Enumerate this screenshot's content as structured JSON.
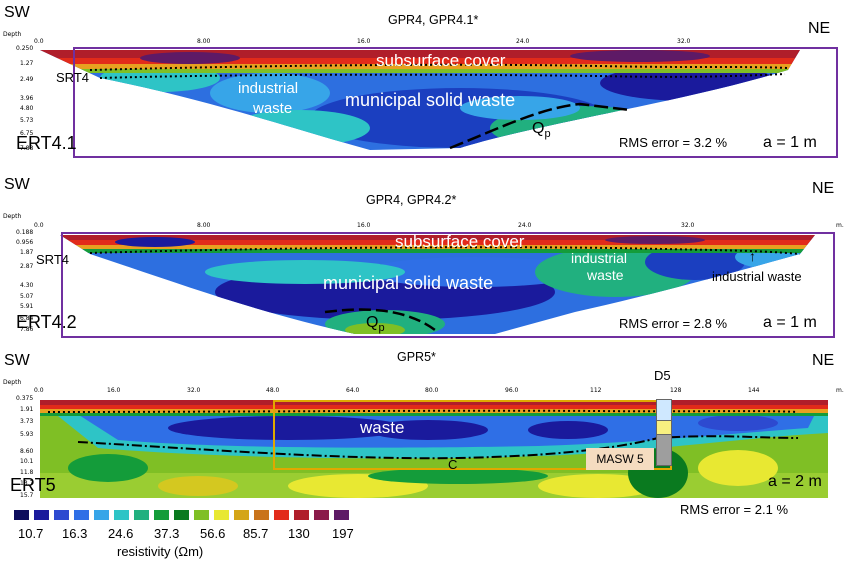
{
  "colors": {
    "frame": "#7030a0",
    "masw_frame": "#e0a800",
    "masw_fill": "#f5dcc0"
  },
  "panels": [
    {
      "sw": "SW",
      "ne": "NE",
      "title": "GPR4, GPR4.1*",
      "depth_label": "Depth",
      "x_ticks": [
        "0.0",
        "8.00",
        "16.0",
        "24.0",
        "32.0"
      ],
      "depth_ticks": [
        "0.250",
        "1.27",
        "2.49",
        "3.96",
        "4.80",
        "5.73",
        "6.75",
        "7.88"
      ],
      "id": "ERT4.1",
      "rms": "RMS error = 3.2 %",
      "spacing": "a = 1 m",
      "labels": {
        "srt": "SRT4",
        "cover": "subsurface cover",
        "industrial_l1": "industrial",
        "industrial_l2": "waste",
        "msw": "municipal solid waste",
        "qp_main": "Q",
        "qp_sub": "p"
      }
    },
    {
      "sw": "SW",
      "ne": "NE",
      "title": "GPR4, GPR4.2*",
      "depth_label": "Depth",
      "x_ticks": [
        "0.0",
        "8.00",
        "16.0",
        "24.0",
        "32.0"
      ],
      "x_unit": "m.",
      "depth_ticks": [
        "0.188",
        "0.956",
        "1.87",
        "2.87",
        "4.30",
        "5.07",
        "5.91",
        "6.84",
        "7.86"
      ],
      "id": "ERT4.2",
      "rms": "RMS error = 2.8 %",
      "spacing": "a = 1 m",
      "labels": {
        "srt": "SRT4",
        "cover": "subsurface cover",
        "industrial_l1": "industrial",
        "industrial_l2": "waste",
        "industrial2": "industrial waste",
        "msw": "municipal solid waste",
        "qp_main": "Q",
        "qp_sub": "p"
      }
    },
    {
      "sw": "SW",
      "ne": "NE",
      "title": "GPR5*",
      "depth_label": "Depth",
      "x_ticks": [
        "0.0",
        "16.0",
        "32.0",
        "48.0",
        "64.0",
        "80.0",
        "96.0",
        "112",
        "128",
        "144"
      ],
      "x_unit": "m.",
      "depth_ticks": [
        "0.375",
        "1.91",
        "3.73",
        "5.93",
        "8.60",
        "10.1",
        "11.8",
        "13.7",
        "15.7"
      ],
      "id": "ERT5",
      "rms": "RMS error = 2.1 %",
      "spacing": "a = 2 m",
      "labels": {
        "waste": "waste",
        "c": "C",
        "masw": "MASW 5",
        "d5": "D5"
      }
    }
  ],
  "legend": {
    "colors": [
      "#0d0d5c",
      "#1a1a9c",
      "#2d4ad0",
      "#2f6fe6",
      "#37a5e8",
      "#2ec4c6",
      "#21b07f",
      "#149c3a",
      "#0a7a1f",
      "#7fbf25",
      "#e8e832",
      "#d4a517",
      "#c9731a",
      "#e22b1a",
      "#b01e2a",
      "#8a1a4a",
      "#5e1a66"
    ],
    "values": [
      "10.7",
      "16.3",
      "24.6",
      "37.3",
      "56.6",
      "85.7",
      "130",
      "197"
    ],
    "caption": "resistivity (Ωm)"
  }
}
